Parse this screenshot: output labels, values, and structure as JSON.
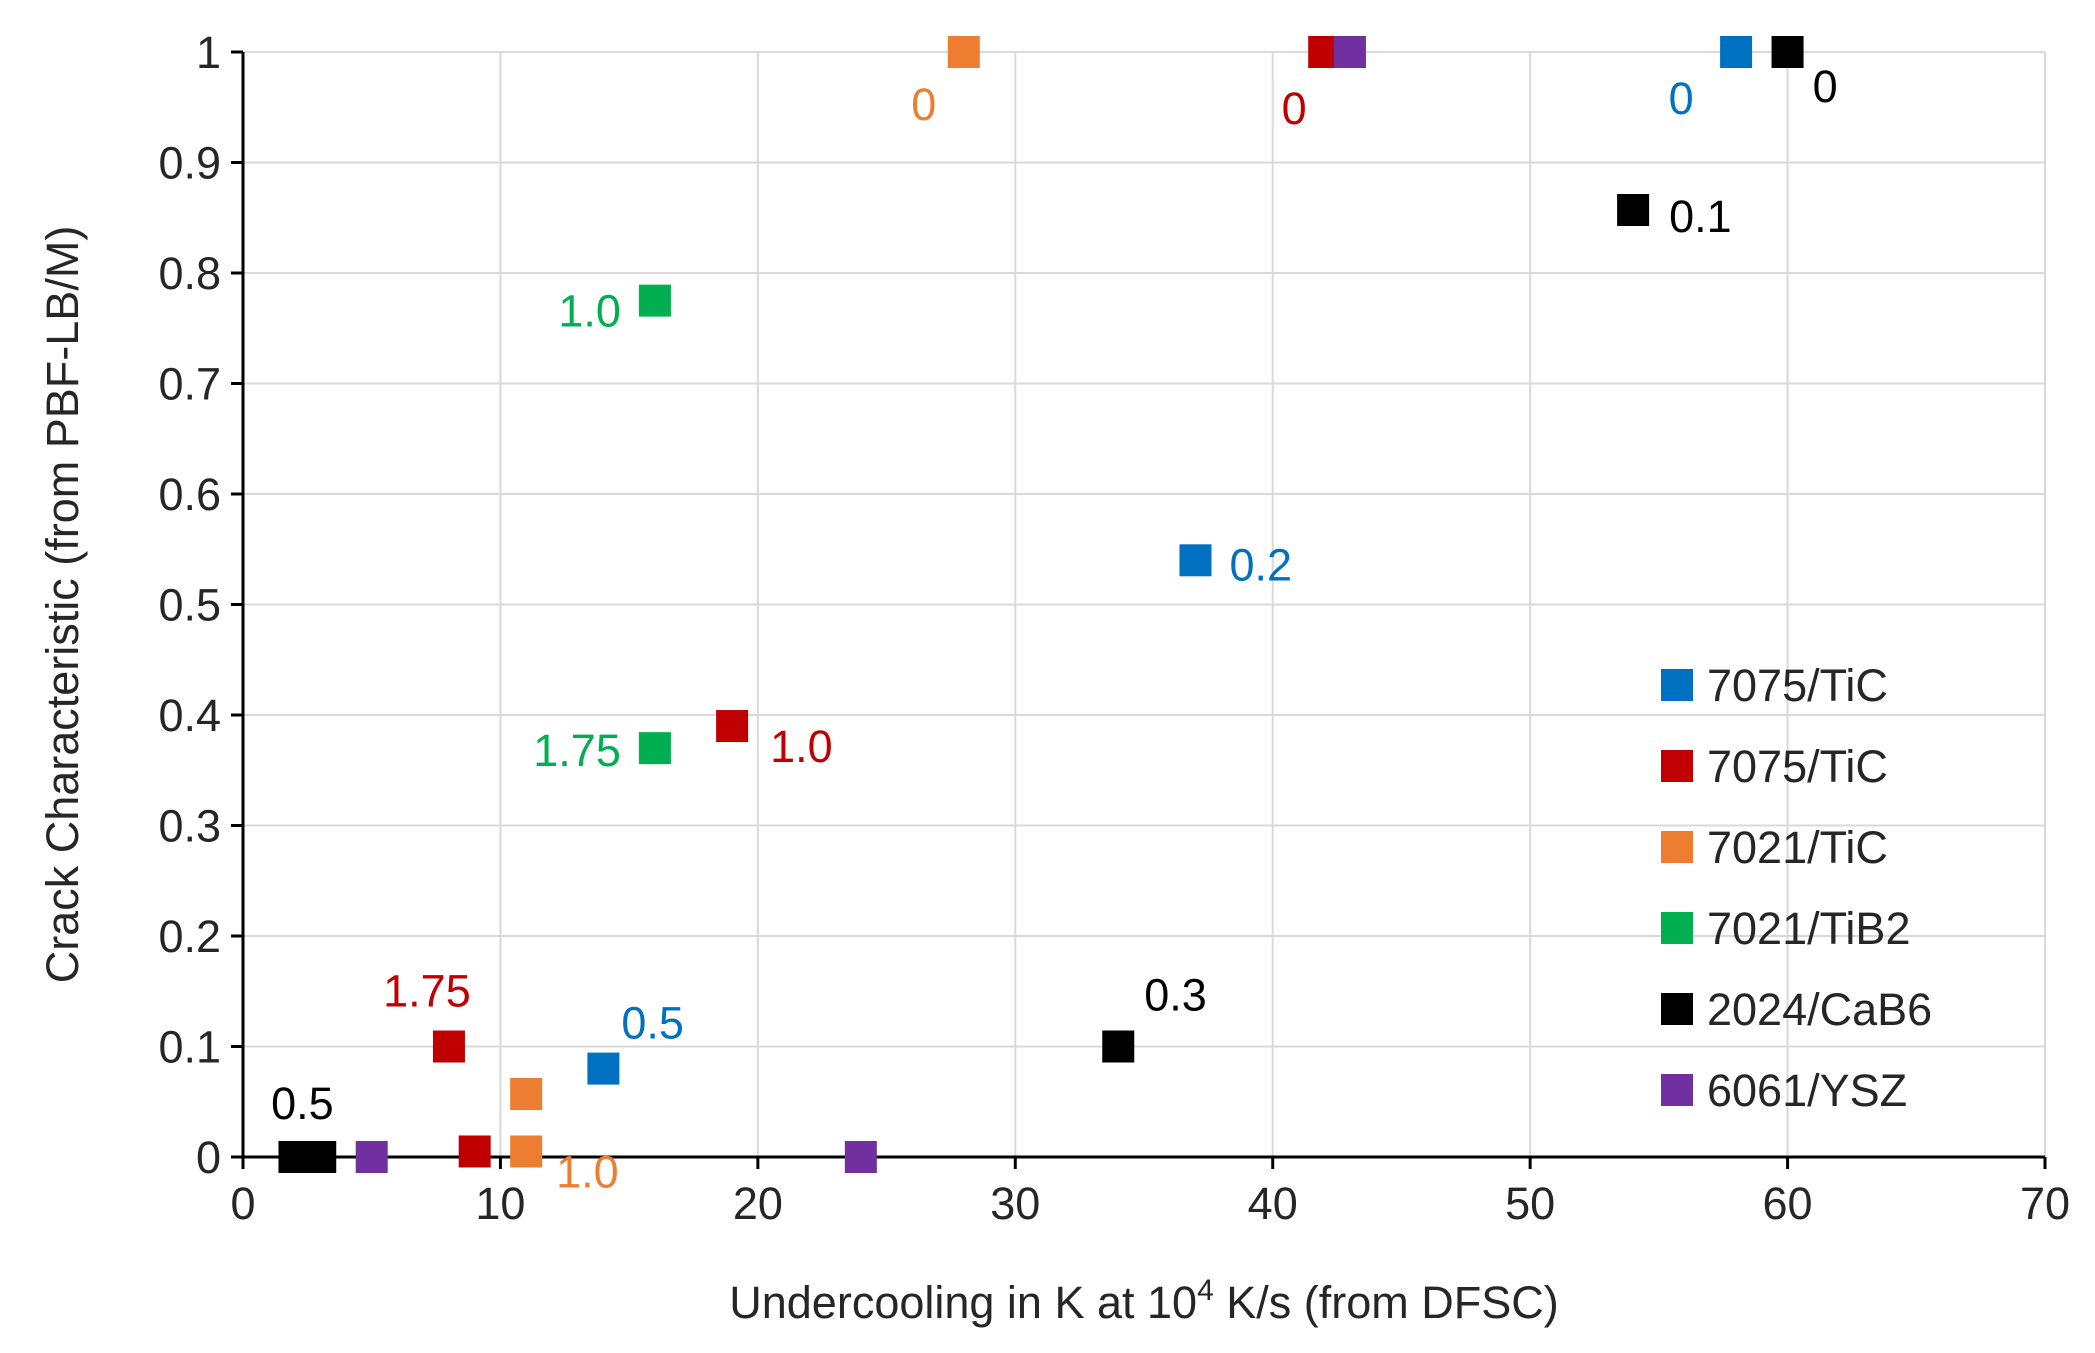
{
  "chart_data": {
    "type": "scatter",
    "title": "",
    "xlabel_parts": [
      "Undercooling in K at 10",
      "4",
      " K/s (from DFSC)"
    ],
    "ylabel": "Crack Characteristic (from PBF-LB/M)",
    "xlim": [
      0,
      70
    ],
    "ylim": [
      0,
      1
    ],
    "xticks": [
      0,
      10,
      20,
      30,
      40,
      50,
      60,
      70
    ],
    "yticks": [
      0,
      0.1,
      0.2,
      0.3,
      0.4,
      0.5,
      0.6,
      0.7,
      0.8,
      0.9,
      1
    ],
    "ytick_labels": [
      "0",
      "0.1",
      "0.2",
      "0.3",
      "0.4",
      "0.5",
      "0.6",
      "0.7",
      "0.8",
      "0.9",
      "1"
    ],
    "grid": true,
    "legend_position": "right",
    "series": [
      {
        "name": "7075/TiC",
        "color": "#0070C0",
        "points": [
          {
            "x": 58,
            "y": 1.0,
            "label": "0"
          },
          {
            "x": 37,
            "y": 0.54,
            "label": "0.2"
          },
          {
            "x": 14,
            "y": 0.08,
            "label": "0.5"
          }
        ]
      },
      {
        "name": "7075/TiC",
        "color": "#C00000",
        "points": [
          {
            "x": 42,
            "y": 1.0,
            "label": "0"
          },
          {
            "x": 19,
            "y": 0.39,
            "label": "1.0"
          },
          {
            "x": 8,
            "y": 0.1,
            "label": "1.75"
          },
          {
            "x": 9,
            "y": 0.005,
            "label": ""
          }
        ]
      },
      {
        "name": "7021/TiC",
        "color": "#ED7D31",
        "points": [
          {
            "x": 28,
            "y": 1.0,
            "label": "0"
          },
          {
            "x": 11,
            "y": 0.057,
            "label": ""
          },
          {
            "x": 11,
            "y": 0.005,
            "label": "1.0"
          }
        ]
      },
      {
        "name": "7021/TiB2",
        "color": "#00B050",
        "points": [
          {
            "x": 16,
            "y": 0.775,
            "label": "1.0"
          },
          {
            "x": 16,
            "y": 0.37,
            "label": "1.75"
          }
        ]
      },
      {
        "name": "2024/CaB6",
        "color": "#000000",
        "points": [
          {
            "x": 60,
            "y": 1.0,
            "label": "0"
          },
          {
            "x": 54,
            "y": 0.857,
            "label": "0.1"
          },
          {
            "x": 34,
            "y": 0.1,
            "label": "0.3"
          },
          {
            "x": 2,
            "y": 0.0,
            "label": ""
          },
          {
            "x": 2.5,
            "y": 0.0,
            "label": "0.5"
          },
          {
            "x": 3,
            "y": 0.0,
            "label": ""
          }
        ]
      },
      {
        "name": "6061/YSZ",
        "color": "#7030A0",
        "points": [
          {
            "x": 43,
            "y": 1.0,
            "label": ""
          },
          {
            "x": 5,
            "y": 0.0,
            "label": ""
          },
          {
            "x": 24,
            "y": 0.0,
            "label": ""
          }
        ]
      }
    ]
  }
}
